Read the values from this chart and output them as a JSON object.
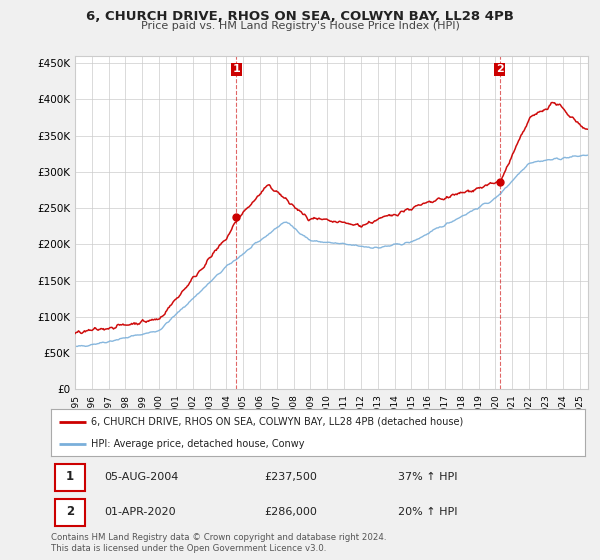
{
  "title": "6, CHURCH DRIVE, RHOS ON SEA, COLWYN BAY, LL28 4PB",
  "subtitle": "Price paid vs. HM Land Registry's House Price Index (HPI)",
  "ylim": [
    0,
    460000
  ],
  "yticks": [
    0,
    50000,
    100000,
    150000,
    200000,
    250000,
    300000,
    350000,
    400000,
    450000
  ],
  "ytick_labels": [
    "£0",
    "£50K",
    "£100K",
    "£150K",
    "£200K",
    "£250K",
    "£300K",
    "£350K",
    "£400K",
    "£450K"
  ],
  "background_color": "#f0f0f0",
  "plot_bg_color": "#ffffff",
  "grid_color": "#cccccc",
  "red_color": "#cc0000",
  "blue_color": "#7aafda",
  "transaction1_x": 2004.59,
  "transaction1_y": 237500,
  "transaction2_x": 2020.25,
  "transaction2_y": 286000,
  "legend_line1": "6, CHURCH DRIVE, RHOS ON SEA, COLWYN BAY, LL28 4PB (detached house)",
  "legend_line2": "HPI: Average price, detached house, Conwy",
  "annotation1_date": "05-AUG-2004",
  "annotation1_price": "£237,500",
  "annotation1_hpi": "37% ↑ HPI",
  "annotation2_date": "01-APR-2020",
  "annotation2_price": "£286,000",
  "annotation2_hpi": "20% ↑ HPI",
  "footer": "Contains HM Land Registry data © Crown copyright and database right 2024.\nThis data is licensed under the Open Government Licence v3.0.",
  "xmin": 1995,
  "xmax": 2025.5
}
